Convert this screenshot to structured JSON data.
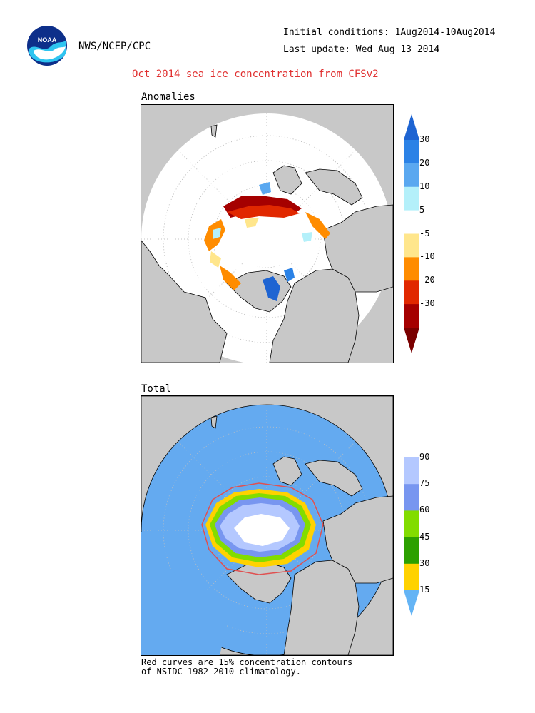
{
  "header": {
    "agency": "NWS/NCEP/CPC",
    "initial_conditions": "Initial conditions: 1Aug2014-10Aug2014",
    "last_update": "Last update: Wed Aug 13 2014",
    "title": "Oct 2014 sea ice concentration from CFSv2"
  },
  "logo": {
    "text": "NOAA"
  },
  "panels": {
    "anomalies": {
      "label": "Anomalies",
      "colorbar": {
        "ticks": [
          "30",
          "20",
          "10",
          "5",
          "-5",
          "-10",
          "-20",
          "-30"
        ],
        "colors": [
          "#1e64d2",
          "#2b82e6",
          "#5aa8f0",
          "#b4f0fa",
          "#ffffff",
          "#ffe68c",
          "#ff8c00",
          "#e12800",
          "#a50000",
          "#7a0000"
        ]
      }
    },
    "total": {
      "label": "Total",
      "colorbar": {
        "ticks": [
          "90",
          "75",
          "60",
          "45",
          "30",
          "15"
        ],
        "colors": [
          "#ffffff",
          "#b4c8ff",
          "#7896f0",
          "#82dc00",
          "#2ca000",
          "#ffd200",
          "#64b4f5"
        ]
      }
    }
  },
  "footnote": {
    "line1": "Red curves are 15% concentration contours",
    "line2": "of NSIDC 1982-2010 climatology."
  },
  "colors": {
    "title_red": "#e03030",
    "land": "#c8c8c8",
    "ocean_total": "#64aaf0",
    "ice_white": "#ffffff",
    "anomaly_dark_red": "#a50000",
    "climatology_contour": "#e05050"
  }
}
